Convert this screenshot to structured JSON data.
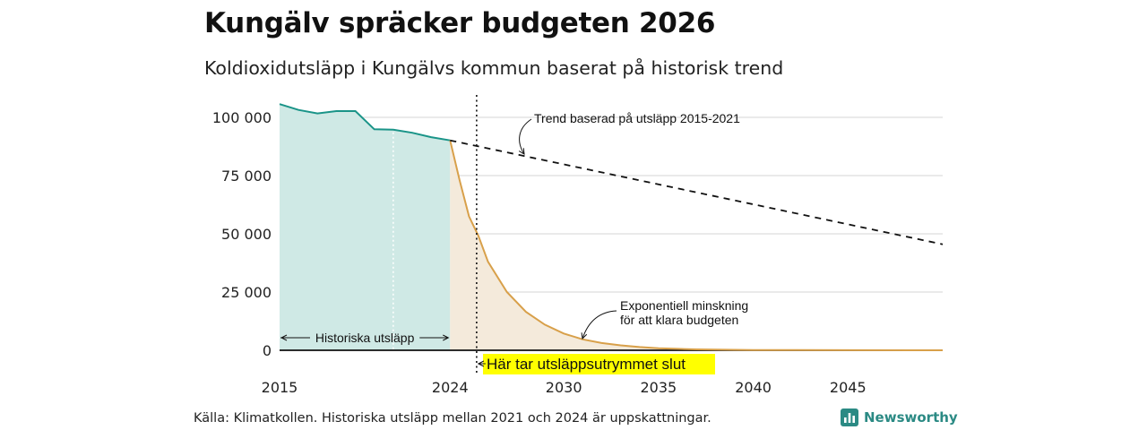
{
  "header": {
    "title": "Kungälv spräcker budgeten 2026",
    "subtitle": "Koldioxidutsläpp i Kungälvs kommun baserat på historisk trend"
  },
  "footer": {
    "source": "Källa: Klimatkollen. Historiska utsläpp mellan 2021 och 2024 är uppskattningar.",
    "brand": "Newsworthy"
  },
  "colors": {
    "historical_line": "#1a9488",
    "historical_fill": "#cfe9e5",
    "budget_line": "#d8a04a",
    "budget_fill": "#f4eadb",
    "trend_line": "#111111",
    "highlight": "#ffff00",
    "grid": "#dddddd"
  },
  "chart_data": {
    "type": "area",
    "xlim": [
      2015,
      2050
    ],
    "ylim": [
      0,
      105000
    ],
    "x_ticks": [
      2015,
      2024,
      2030,
      2035,
      2040,
      2045
    ],
    "y_ticks": [
      0,
      25000,
      50000,
      75000,
      100000
    ],
    "y_tick_labels": [
      "0",
      "25 000",
      "50 000",
      "75 000",
      "100 000"
    ],
    "grid": true,
    "series": [
      {
        "name": "Historiska utsläpp",
        "style": "area",
        "points": [
          [
            2015,
            105700
          ],
          [
            2016,
            103200
          ],
          [
            2017,
            101700
          ],
          [
            2018,
            102700
          ],
          [
            2019,
            102700
          ],
          [
            2020,
            94900
          ],
          [
            2021,
            94700
          ],
          [
            2022,
            93400
          ],
          [
            2023,
            91500
          ],
          [
            2024,
            90100
          ]
        ]
      },
      {
        "name": "Exponentiell minskning för att klara budgeten",
        "style": "area",
        "points": [
          [
            2024,
            90100
          ],
          [
            2024.5,
            73000
          ],
          [
            2025,
            57500
          ],
          [
            2025.5,
            49000
          ],
          [
            2026,
            38000
          ],
          [
            2027,
            25000
          ],
          [
            2028,
            16500
          ],
          [
            2029,
            11000
          ],
          [
            2030,
            7200
          ],
          [
            2031,
            4700
          ],
          [
            2032,
            3100
          ],
          [
            2033,
            2100
          ],
          [
            2034,
            1400
          ],
          [
            2035,
            900
          ],
          [
            2036,
            600
          ],
          [
            2037,
            400
          ],
          [
            2038,
            260
          ],
          [
            2040,
            120
          ],
          [
            2042,
            60
          ],
          [
            2045,
            20
          ],
          [
            2050,
            5
          ]
        ]
      },
      {
        "name": "Trend baserad på utsläpp 2015-2021",
        "style": "dashed",
        "points": [
          [
            2024,
            90100
          ],
          [
            2050,
            45500
          ]
        ]
      }
    ],
    "budget_end_year": 2025.4,
    "historical_range": [
      2015,
      2024
    ],
    "annotations": {
      "trend": "Trend baserad på utsläpp 2015-2021",
      "exp_line1": "Exponentiell minskning",
      "exp_line2": "för att klara budgeten",
      "historical": "Historiska utsläpp",
      "budget_end": "Här tar utsläppsutrymmet slut"
    }
  }
}
